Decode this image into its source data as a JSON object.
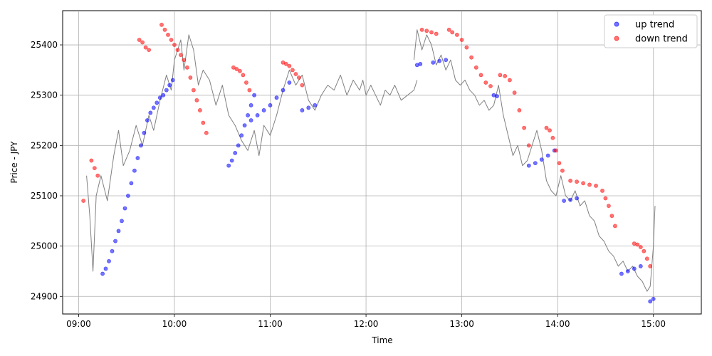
{
  "chart_data": {
    "type": "line",
    "xlabel": "Time",
    "ylabel": "Price - JPY",
    "x_ticks": [
      "09:00",
      "10:00",
      "11:00",
      "12:00",
      "13:00",
      "14:00",
      "15:00"
    ],
    "y_ticks": [
      24900,
      25000,
      25100,
      25200,
      25300,
      25400
    ],
    "xlim": [
      "08:50",
      "15:30"
    ],
    "ylim": [
      24865,
      25468
    ],
    "grid": true,
    "legend_position": "top-right",
    "price_line": {
      "color": "#808080",
      "points": [
        [
          "09:05",
          25140
        ],
        [
          "09:07",
          25060
        ],
        [
          "09:09",
          24950
        ],
        [
          "09:11",
          25100
        ],
        [
          "09:14",
          25140
        ],
        [
          "09:18",
          25090
        ],
        [
          "09:22",
          25180
        ],
        [
          "09:25",
          25230
        ],
        [
          "09:28",
          25160
        ],
        [
          "09:32",
          25190
        ],
        [
          "09:36",
          25240
        ],
        [
          "09:40",
          25200
        ],
        [
          "09:44",
          25260
        ],
        [
          "09:47",
          25230
        ],
        [
          "09:51",
          25290
        ],
        [
          "09:55",
          25340
        ],
        [
          "09:58",
          25310
        ],
        [
          "10:00",
          25370
        ],
        [
          "10:02",
          25390
        ],
        [
          "10:04",
          25410
        ],
        [
          "10:06",
          25350
        ],
        [
          "10:09",
          25420
        ],
        [
          "10:12",
          25390
        ],
        [
          "10:15",
          25320
        ],
        [
          "10:18",
          25350
        ],
        [
          "10:22",
          25330
        ],
        [
          "10:26",
          25280
        ],
        [
          "10:30",
          25320
        ],
        [
          "10:34",
          25260
        ],
        [
          "10:38",
          25240
        ],
        [
          "10:42",
          25210
        ],
        [
          "10:46",
          25190
        ],
        [
          "10:50",
          25230
        ],
        [
          "10:53",
          25180
        ],
        [
          "10:56",
          25240
        ],
        [
          "11:00",
          25220
        ],
        [
          "11:04",
          25260
        ],
        [
          "11:08",
          25310
        ],
        [
          "11:12",
          25350
        ],
        [
          "11:16",
          25320
        ],
        [
          "11:20",
          25340
        ],
        [
          "11:24",
          25290
        ],
        [
          "11:28",
          25270
        ],
        [
          "11:32",
          25300
        ],
        [
          "11:36",
          25320
        ],
        [
          "11:40",
          25310
        ],
        [
          "11:44",
          25340
        ],
        [
          "11:48",
          25300
        ],
        [
          "11:52",
          25330
        ],
        [
          "11:56",
          25310
        ],
        [
          "11:58",
          25330
        ],
        [
          "12:00",
          25300
        ],
        [
          "12:03",
          25320
        ],
        [
          "12:06",
          25300
        ],
        [
          "12:09",
          25280
        ],
        [
          "12:12",
          25310
        ],
        [
          "12:15",
          25300
        ],
        [
          "12:18",
          25320
        ],
        [
          "12:22",
          25290
        ],
        [
          "12:26",
          25300
        ],
        [
          "12:30",
          25310
        ],
        [
          "12:32",
          25330
        ]
      ],
      "points_pm": [
        [
          "12:30",
          25370
        ],
        [
          "12:32",
          25430
        ],
        [
          "12:35",
          25390
        ],
        [
          "12:38",
          25420
        ],
        [
          "12:41",
          25400
        ],
        [
          "12:44",
          25360
        ],
        [
          "12:47",
          25380
        ],
        [
          "12:50",
          25350
        ],
        [
          "12:53",
          25370
        ],
        [
          "12:56",
          25330
        ],
        [
          "12:59",
          25320
        ],
        [
          "13:02",
          25330
        ],
        [
          "13:05",
          25310
        ],
        [
          "13:08",
          25300
        ],
        [
          "13:11",
          25280
        ],
        [
          "13:14",
          25290
        ],
        [
          "13:17",
          25270
        ],
        [
          "13:20",
          25280
        ],
        [
          "13:23",
          25320
        ],
        [
          "13:26",
          25260
        ],
        [
          "13:29",
          25220
        ],
        [
          "13:32",
          25180
        ],
        [
          "13:35",
          25200
        ],
        [
          "13:38",
          25160
        ],
        [
          "13:41",
          25170
        ],
        [
          "13:44",
          25200
        ],
        [
          "13:47",
          25230
        ],
        [
          "13:50",
          25190
        ],
        [
          "13:53",
          25130
        ],
        [
          "13:56",
          25110
        ],
        [
          "13:59",
          25100
        ],
        [
          "14:02",
          25140
        ],
        [
          "14:05",
          25100
        ],
        [
          "14:08",
          25090
        ],
        [
          "14:11",
          25110
        ],
        [
          "14:14",
          25080
        ],
        [
          "14:17",
          25090
        ],
        [
          "14:20",
          25060
        ],
        [
          "14:23",
          25050
        ],
        [
          "14:26",
          25020
        ],
        [
          "14:29",
          25010
        ],
        [
          "14:32",
          24990
        ],
        [
          "14:35",
          24980
        ],
        [
          "14:38",
          24960
        ],
        [
          "14:41",
          24970
        ],
        [
          "14:44",
          24950
        ],
        [
          "14:47",
          24960
        ],
        [
          "14:50",
          24940
        ],
        [
          "14:53",
          24930
        ],
        [
          "14:56",
          24910
        ],
        [
          "14:58",
          24920
        ],
        [
          "15:00",
          25000
        ],
        [
          "15:01",
          25080
        ]
      ]
    },
    "series": [
      {
        "name": "up trend",
        "color": "#0000ff",
        "points": [
          [
            "09:15",
            24945
          ],
          [
            "09:17",
            24955
          ],
          [
            "09:19",
            24970
          ],
          [
            "09:21",
            24990
          ],
          [
            "09:23",
            25010
          ],
          [
            "09:25",
            25030
          ],
          [
            "09:27",
            25050
          ],
          [
            "09:29",
            25075
          ],
          [
            "09:31",
            25100
          ],
          [
            "09:33",
            25125
          ],
          [
            "09:35",
            25150
          ],
          [
            "09:37",
            25175
          ],
          [
            "09:39",
            25200
          ],
          [
            "09:41",
            25225
          ],
          [
            "09:43",
            25250
          ],
          [
            "09:45",
            25265
          ],
          [
            "09:47",
            25275
          ],
          [
            "09:49",
            25285
          ],
          [
            "09:51",
            25295
          ],
          [
            "09:53",
            25300
          ],
          [
            "09:55",
            25310
          ],
          [
            "09:57",
            25320
          ],
          [
            "09:59",
            25330
          ],
          [
            "10:34",
            25160
          ],
          [
            "10:36",
            25170
          ],
          [
            "10:38",
            25185
          ],
          [
            "10:40",
            25200
          ],
          [
            "10:42",
            25220
          ],
          [
            "10:44",
            25240
          ],
          [
            "10:46",
            25260
          ],
          [
            "10:48",
            25280
          ],
          [
            "10:50",
            25300
          ],
          [
            "10:48",
            25250
          ],
          [
            "10:52",
            25260
          ],
          [
            "10:56",
            25270
          ],
          [
            "11:00",
            25280
          ],
          [
            "11:04",
            25295
          ],
          [
            "11:08",
            25310
          ],
          [
            "11:12",
            25325
          ],
          [
            "11:20",
            25270
          ],
          [
            "11:24",
            25275
          ],
          [
            "11:28",
            25280
          ],
          [
            "12:32",
            25360
          ],
          [
            "12:34",
            25362
          ],
          [
            "12:42",
            25365
          ],
          [
            "12:46",
            25368
          ],
          [
            "12:50",
            25370
          ],
          [
            "13:20",
            25300
          ],
          [
            "13:22",
            25298
          ],
          [
            "13:42",
            25160
          ],
          [
            "13:46",
            25165
          ],
          [
            "13:50",
            25172
          ],
          [
            "13:54",
            25180
          ],
          [
            "13:58",
            25190
          ],
          [
            "14:04",
            25090
          ],
          [
            "14:08",
            25092
          ],
          [
            "14:12",
            25095
          ],
          [
            "14:40",
            24945
          ],
          [
            "14:44",
            24950
          ],
          [
            "14:48",
            24955
          ],
          [
            "14:52",
            24960
          ],
          [
            "14:58",
            24890
          ],
          [
            "15:00",
            24895
          ]
        ]
      },
      {
        "name": "down trend",
        "color": "#ff0000",
        "points": [
          [
            "09:03",
            25090
          ],
          [
            "09:08",
            25170
          ],
          [
            "09:10",
            25155
          ],
          [
            "09:12",
            25140
          ],
          [
            "09:38",
            25410
          ],
          [
            "09:40",
            25405
          ],
          [
            "09:42",
            25395
          ],
          [
            "09:44",
            25390
          ],
          [
            "09:52",
            25440
          ],
          [
            "09:54",
            25430
          ],
          [
            "09:56",
            25420
          ],
          [
            "09:58",
            25410
          ],
          [
            "10:00",
            25400
          ],
          [
            "10:02",
            25390
          ],
          [
            "10:04",
            25380
          ],
          [
            "10:06",
            25370
          ],
          [
            "10:08",
            25355
          ],
          [
            "10:10",
            25335
          ],
          [
            "10:12",
            25310
          ],
          [
            "10:14",
            25290
          ],
          [
            "10:16",
            25270
          ],
          [
            "10:18",
            25245
          ],
          [
            "10:20",
            25225
          ],
          [
            "10:37",
            25355
          ],
          [
            "10:39",
            25352
          ],
          [
            "10:41",
            25348
          ],
          [
            "10:43",
            25340
          ],
          [
            "10:45",
            25325
          ],
          [
            "10:47",
            25310
          ],
          [
            "11:08",
            25365
          ],
          [
            "11:10",
            25362
          ],
          [
            "11:12",
            25358
          ],
          [
            "11:14",
            25350
          ],
          [
            "11:16",
            25342
          ],
          [
            "11:18",
            25335
          ],
          [
            "11:20",
            25320
          ],
          [
            "12:35",
            25430
          ],
          [
            "12:38",
            25428
          ],
          [
            "12:41",
            25425
          ],
          [
            "12:44",
            25422
          ],
          [
            "12:52",
            25430
          ],
          [
            "12:54",
            25425
          ],
          [
            "12:57",
            25420
          ],
          [
            "13:00",
            25410
          ],
          [
            "13:03",
            25395
          ],
          [
            "13:06",
            25375
          ],
          [
            "13:09",
            25355
          ],
          [
            "13:12",
            25340
          ],
          [
            "13:15",
            25325
          ],
          [
            "13:18",
            25318
          ],
          [
            "13:24",
            25340
          ],
          [
            "13:27",
            25338
          ],
          [
            "13:30",
            25330
          ],
          [
            "13:33",
            25305
          ],
          [
            "13:36",
            25270
          ],
          [
            "13:39",
            25235
          ],
          [
            "13:42",
            25200
          ],
          [
            "13:53",
            25235
          ],
          [
            "13:55",
            25230
          ],
          [
            "13:57",
            25215
          ],
          [
            "13:59",
            25190
          ],
          [
            "14:01",
            25165
          ],
          [
            "14:03",
            25150
          ],
          [
            "14:08",
            25130
          ],
          [
            "14:12",
            25128
          ],
          [
            "14:16",
            25125
          ],
          [
            "14:20",
            25122
          ],
          [
            "14:24",
            25120
          ],
          [
            "14:28",
            25110
          ],
          [
            "14:30",
            25095
          ],
          [
            "14:32",
            25080
          ],
          [
            "14:34",
            25060
          ],
          [
            "14:36",
            25040
          ],
          [
            "14:48",
            25005
          ],
          [
            "14:50",
            25003
          ],
          [
            "14:52",
            24998
          ],
          [
            "14:54",
            24990
          ],
          [
            "14:56",
            24975
          ],
          [
            "14:58",
            24960
          ]
        ]
      }
    ]
  }
}
